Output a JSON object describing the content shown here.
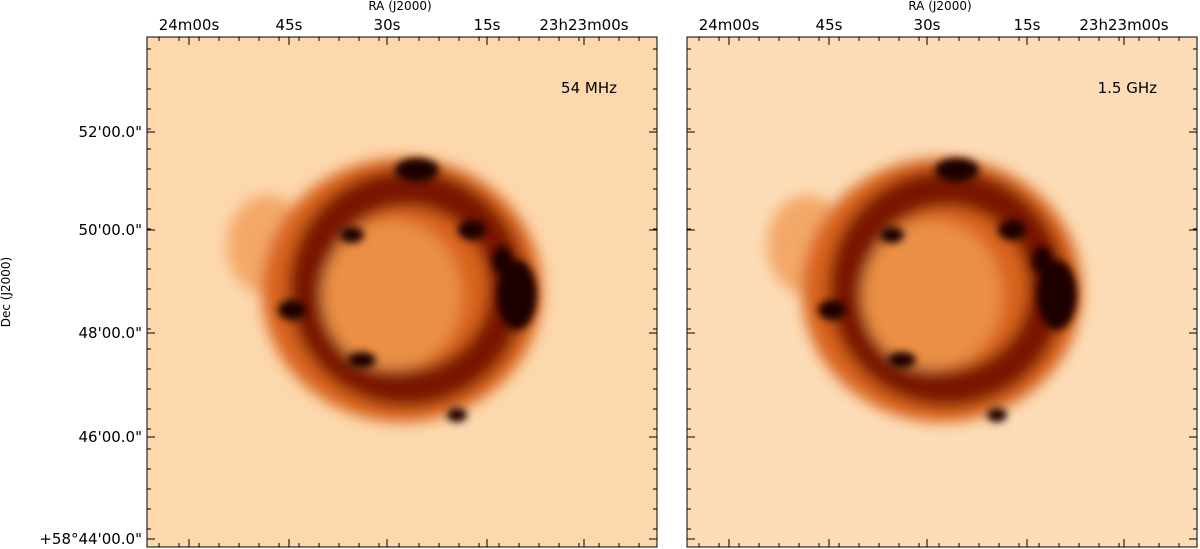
{
  "panels": [
    {
      "label": "54 MHz",
      "x_axis_label": "RA (J2000)",
      "x_tick_labels": [
        "24m00s",
        "45s",
        "30s",
        "15s",
        "23h23m00s"
      ],
      "y_axis_label": "Dec (J2000)",
      "y_tick_labels": [
        "52'00.0\"",
        "50'00.0\"",
        "48'00.0\"",
        "46'00.0\"",
        "+58°44'00.0\""
      ]
    },
    {
      "label": "1.5 GHz",
      "x_axis_label": "RA (J2000)",
      "x_tick_labels": [
        "24m00s",
        "45s",
        "30s",
        "15s",
        "23h23m00s"
      ]
    }
  ]
}
